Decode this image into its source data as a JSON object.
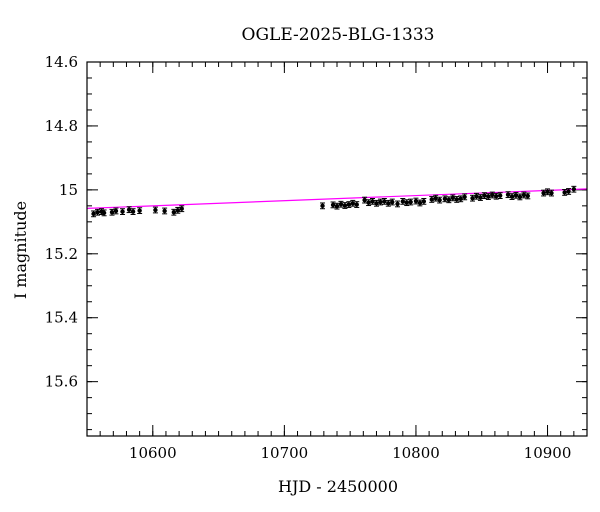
{
  "chart_data": {
    "type": "scatter",
    "title": "OGLE-2025-BLG-1333",
    "xlabel": "HJD - 2450000",
    "ylabel": "I magnitude",
    "xlim": [
      10550,
      10930
    ],
    "ylim": [
      15.77,
      14.6
    ],
    "y_inverted": true,
    "x_major_ticks": [
      10600,
      10700,
      10800,
      10900
    ],
    "x_tick_labels": [
      "10600",
      "10700",
      "10800",
      "10900"
    ],
    "x_minor_step": 10,
    "y_major_ticks": [
      14.6,
      14.8,
      15.0,
      15.2,
      15.4,
      15.6
    ],
    "y_tick_labels": [
      "14.6",
      "14.8",
      "15",
      "15.2",
      "15.4",
      "15.6"
    ],
    "y_minor_step": 0.05,
    "grid": false,
    "colors": {
      "points": "#000000",
      "model": "#ff00ff",
      "frame": "#000000"
    },
    "model_line": {
      "x": [
        10550,
        10930
      ],
      "y": [
        15.058,
        14.997
      ]
    },
    "series": [
      {
        "points": [
          {
            "x": 10555,
            "y": 15.075,
            "err": 0.009
          },
          {
            "x": 10558,
            "y": 15.07,
            "err": 0.009
          },
          {
            "x": 10561,
            "y": 15.068,
            "err": 0.009
          },
          {
            "x": 10563,
            "y": 15.072,
            "err": 0.009
          },
          {
            "x": 10569,
            "y": 15.07,
            "err": 0.009
          },
          {
            "x": 10572,
            "y": 15.066,
            "err": 0.009
          },
          {
            "x": 10577,
            "y": 15.068,
            "err": 0.009
          },
          {
            "x": 10582,
            "y": 15.062,
            "err": 0.009
          },
          {
            "x": 10585,
            "y": 15.068,
            "err": 0.009
          },
          {
            "x": 10590,
            "y": 15.065,
            "err": 0.009
          },
          {
            "x": 10602,
            "y": 15.063,
            "err": 0.009
          },
          {
            "x": 10609,
            "y": 15.066,
            "err": 0.009
          },
          {
            "x": 10616,
            "y": 15.07,
            "err": 0.009
          },
          {
            "x": 10619,
            "y": 15.064,
            "err": 0.009
          },
          {
            "x": 10622,
            "y": 15.059,
            "err": 0.009
          },
          {
            "x": 10729,
            "y": 15.05,
            "err": 0.009
          },
          {
            "x": 10737,
            "y": 15.047,
            "err": 0.009
          },
          {
            "x": 10740,
            "y": 15.051,
            "err": 0.009
          },
          {
            "x": 10743,
            "y": 15.045,
            "err": 0.009
          },
          {
            "x": 10746,
            "y": 15.049,
            "err": 0.009
          },
          {
            "x": 10749,
            "y": 15.046,
            "err": 0.009
          },
          {
            "x": 10752,
            "y": 15.042,
            "err": 0.009
          },
          {
            "x": 10755,
            "y": 15.046,
            "err": 0.009
          },
          {
            "x": 10761,
            "y": 15.032,
            "err": 0.009
          },
          {
            "x": 10764,
            "y": 15.04,
            "err": 0.009
          },
          {
            "x": 10767,
            "y": 15.036,
            "err": 0.009
          },
          {
            "x": 10770,
            "y": 15.042,
            "err": 0.009
          },
          {
            "x": 10773,
            "y": 15.038,
            "err": 0.009
          },
          {
            "x": 10776,
            "y": 15.036,
            "err": 0.009
          },
          {
            "x": 10779,
            "y": 15.042,
            "err": 0.009
          },
          {
            "x": 10782,
            "y": 15.038,
            "err": 0.009
          },
          {
            "x": 10786,
            "y": 15.044,
            "err": 0.009
          },
          {
            "x": 10790,
            "y": 15.036,
            "err": 0.009
          },
          {
            "x": 10793,
            "y": 15.04,
            "err": 0.009
          },
          {
            "x": 10796,
            "y": 15.038,
            "err": 0.009
          },
          {
            "x": 10800,
            "y": 15.035,
            "err": 0.009
          },
          {
            "x": 10803,
            "y": 15.041,
            "err": 0.009
          },
          {
            "x": 10806,
            "y": 15.036,
            "err": 0.009
          },
          {
            "x": 10812,
            "y": 15.03,
            "err": 0.009
          },
          {
            "x": 10815,
            "y": 15.026,
            "err": 0.009
          },
          {
            "x": 10818,
            "y": 15.032,
            "err": 0.009
          },
          {
            "x": 10822,
            "y": 15.028,
            "err": 0.009
          },
          {
            "x": 10825,
            "y": 15.031,
            "err": 0.009
          },
          {
            "x": 10828,
            "y": 15.025,
            "err": 0.009
          },
          {
            "x": 10831,
            "y": 15.03,
            "err": 0.009
          },
          {
            "x": 10834,
            "y": 15.028,
            "err": 0.009
          },
          {
            "x": 10837,
            "y": 15.022,
            "err": 0.009
          },
          {
            "x": 10843,
            "y": 15.026,
            "err": 0.009
          },
          {
            "x": 10846,
            "y": 15.02,
            "err": 0.009
          },
          {
            "x": 10849,
            "y": 15.024,
            "err": 0.009
          },
          {
            "x": 10852,
            "y": 15.018,
            "err": 0.009
          },
          {
            "x": 10855,
            "y": 15.021,
            "err": 0.009
          },
          {
            "x": 10858,
            "y": 15.016,
            "err": 0.009
          },
          {
            "x": 10861,
            "y": 15.02,
            "err": 0.009
          },
          {
            "x": 10864,
            "y": 15.018,
            "err": 0.009
          },
          {
            "x": 10870,
            "y": 15.015,
            "err": 0.009
          },
          {
            "x": 10873,
            "y": 15.021,
            "err": 0.009
          },
          {
            "x": 10876,
            "y": 15.017,
            "err": 0.009
          },
          {
            "x": 10879,
            "y": 15.022,
            "err": 0.009
          },
          {
            "x": 10882,
            "y": 15.016,
            "err": 0.009
          },
          {
            "x": 10885,
            "y": 15.019,
            "err": 0.009
          },
          {
            "x": 10897,
            "y": 15.01,
            "err": 0.009
          },
          {
            "x": 10900,
            "y": 15.006,
            "err": 0.009
          },
          {
            "x": 10903,
            "y": 15.01,
            "err": 0.009
          },
          {
            "x": 10913,
            "y": 15.008,
            "err": 0.009
          },
          {
            "x": 10916,
            "y": 15.005,
            "err": 0.009
          },
          {
            "x": 10920,
            "y": 14.998,
            "err": 0.009
          }
        ]
      }
    ]
  }
}
